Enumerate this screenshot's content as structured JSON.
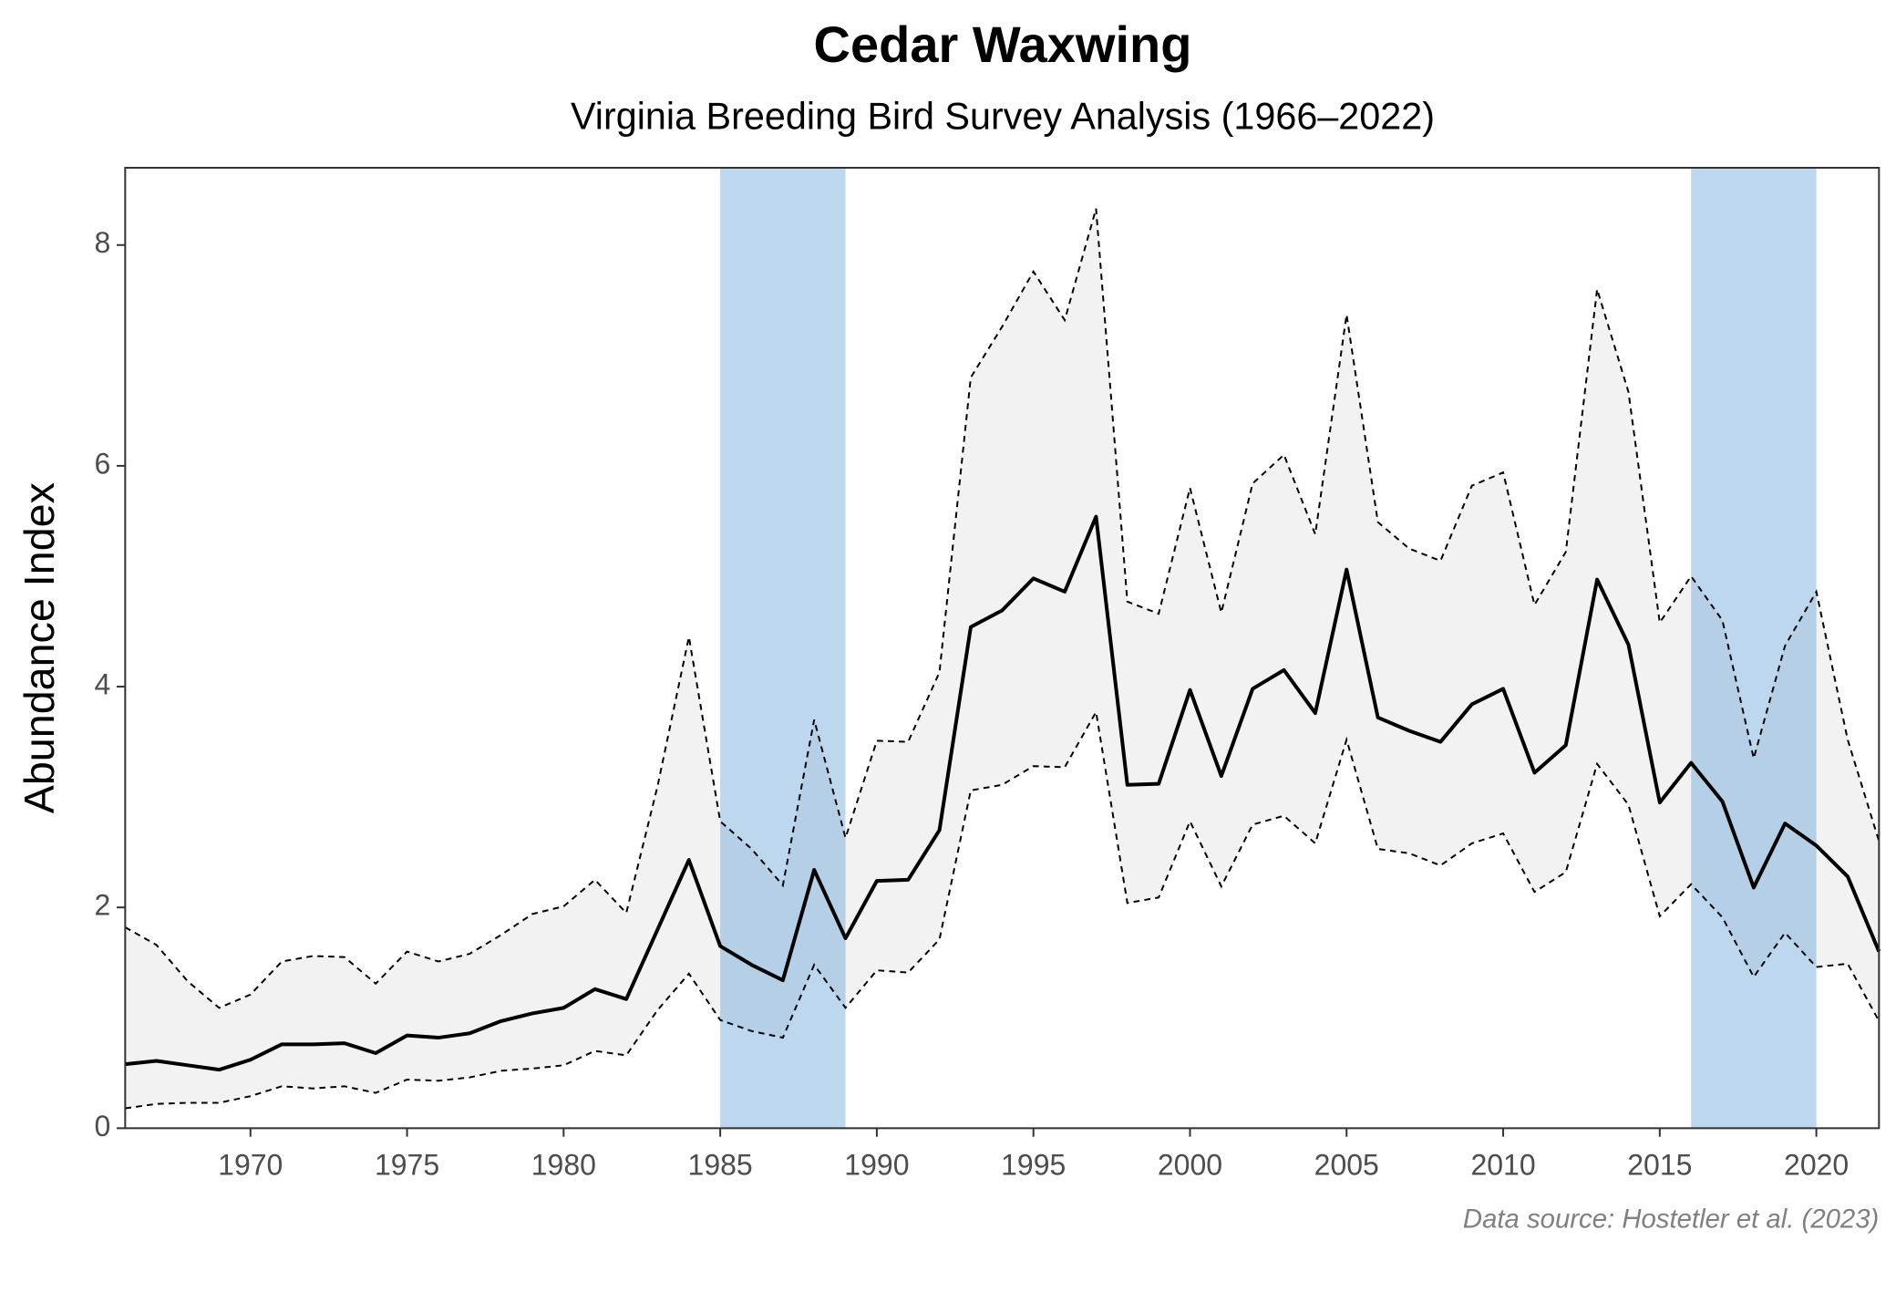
{
  "chart_data": {
    "type": "line",
    "title": "Cedar Waxwing",
    "subtitle": "Virginia Breeding Bird Survey Analysis (1966–2022)",
    "y_label": "Abundance Index",
    "caption": "Data source: Hostetler et al. (2023)",
    "x": [
      1966,
      1967,
      1968,
      1969,
      1970,
      1971,
      1972,
      1973,
      1974,
      1975,
      1976,
      1977,
      1978,
      1979,
      1980,
      1981,
      1982,
      1983,
      1984,
      1985,
      1986,
      1987,
      1988,
      1989,
      1990,
      1991,
      1992,
      1993,
      1994,
      1995,
      1996,
      1997,
      1998,
      1999,
      2000,
      2001,
      2002,
      2003,
      2004,
      2005,
      2006,
      2007,
      2008,
      2009,
      2010,
      2011,
      2012,
      2013,
      2014,
      2015,
      2016,
      2017,
      2018,
      2019,
      2020,
      2021,
      2022
    ],
    "values": [
      0.58,
      0.61,
      0.57,
      0.53,
      0.62,
      0.76,
      0.76,
      0.77,
      0.68,
      0.84,
      0.82,
      0.86,
      0.97,
      1.04,
      1.09,
      1.26,
      1.17,
      1.8,
      2.43,
      1.65,
      1.48,
      1.34,
      2.34,
      1.72,
      2.24,
      2.25,
      2.7,
      4.54,
      4.69,
      4.98,
      4.86,
      5.54,
      3.11,
      3.12,
      3.97,
      3.19,
      3.98,
      4.15,
      3.76,
      5.06,
      3.72,
      3.6,
      3.5,
      3.84,
      3.98,
      3.22,
      3.47,
      4.97,
      4.38,
      2.95,
      3.31,
      2.96,
      2.18,
      2.76,
      2.56,
      2.28,
      1.6
    ],
    "upper": [
      1.82,
      1.66,
      1.33,
      1.09,
      1.21,
      1.51,
      1.56,
      1.55,
      1.31,
      1.6,
      1.51,
      1.58,
      1.75,
      1.94,
      2.01,
      2.25,
      1.95,
      3.1,
      4.45,
      2.78,
      2.53,
      2.2,
      3.7,
      2.63,
      3.51,
      3.5,
      4.13,
      6.8,
      7.26,
      7.76,
      7.32,
      8.33,
      4.77,
      4.66,
      5.8,
      4.67,
      5.84,
      6.1,
      5.38,
      7.37,
      5.49,
      5.25,
      5.14,
      5.82,
      5.94,
      4.74,
      5.22,
      7.6,
      6.67,
      4.58,
      5.0,
      4.6,
      3.35,
      4.37,
      4.86,
      3.52,
      2.6
    ],
    "lower": [
      0.18,
      0.22,
      0.23,
      0.23,
      0.29,
      0.38,
      0.36,
      0.38,
      0.32,
      0.44,
      0.43,
      0.46,
      0.52,
      0.54,
      0.57,
      0.7,
      0.66,
      1.07,
      1.4,
      0.98,
      0.88,
      0.82,
      1.48,
      1.09,
      1.43,
      1.41,
      1.71,
      3.06,
      3.11,
      3.28,
      3.27,
      3.77,
      2.04,
      2.09,
      2.78,
      2.19,
      2.75,
      2.83,
      2.58,
      3.52,
      2.53,
      2.49,
      2.38,
      2.58,
      2.67,
      2.14,
      2.32,
      3.3,
      2.93,
      1.92,
      2.21,
      1.91,
      1.37,
      1.77,
      1.46,
      1.49,
      0.97
    ],
    "color": "#000000",
    "ribbon_color": "#f2f2f2",
    "shaded_periods": [
      [
        1985,
        1989
      ],
      [
        2016,
        2020
      ]
    ],
    "shade_color": "#5b9bd5",
    "xlim": [
      1966,
      2022
    ],
    "xticks": [
      1970,
      1975,
      1980,
      1985,
      1990,
      1995,
      2000,
      2005,
      2010,
      2015,
      2020
    ],
    "ylim": [
      0,
      8.7
    ],
    "yticks": [
      0,
      2,
      4,
      6,
      8
    ],
    "grid": false
  }
}
